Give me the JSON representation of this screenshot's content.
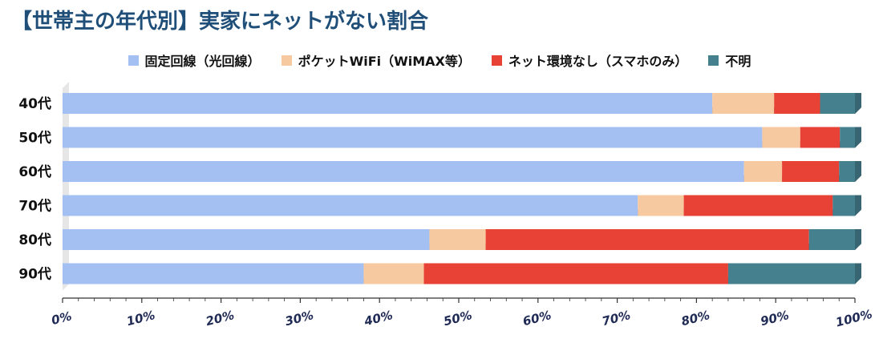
{
  "chart_data": {
    "type": "bar",
    "orientation": "horizontal",
    "stacked": true,
    "percent": true,
    "title": "【世帯主の年代別】実家にネットがない割合",
    "categories": [
      "40代",
      "50代",
      "60代",
      "70代",
      "80代",
      "90代"
    ],
    "series": [
      {
        "name": "固定回線（光回線）",
        "color": "#a4c0f3",
        "values": [
          82,
          88.3,
          86,
          72.6,
          46.3,
          38
        ]
      },
      {
        "name": "ポケットWiFi（WiMAX等）",
        "color": "#f7c9a0",
        "values": [
          7.8,
          4.8,
          4.8,
          5.8,
          7.1,
          7.6
        ]
      },
      {
        "name": "ネット環境なし（スマホのみ）",
        "color": "#e84236",
        "values": [
          5.8,
          5,
          7.2,
          18.8,
          40.8,
          38.4
        ]
      },
      {
        "name": "不明",
        "color": "#45808e",
        "values": [
          4.4,
          1.9,
          2,
          2.8,
          5.8,
          16
        ]
      }
    ],
    "xlim": [
      0,
      100
    ],
    "ticks": [
      "0%",
      "10%",
      "20%",
      "30%",
      "40%",
      "50%",
      "60%",
      "70%",
      "80%",
      "90%",
      "100%"
    ],
    "legend_position": "top",
    "grid": false
  }
}
